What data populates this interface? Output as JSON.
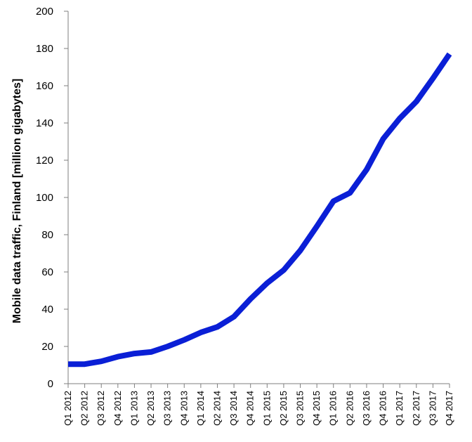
{
  "chart_data": {
    "type": "line",
    "title": "",
    "xlabel": "",
    "ylabel": "Mobile data traffic, Finland [million gigabytes]",
    "ylim": [
      0,
      200
    ],
    "yticks": [
      0,
      20,
      40,
      60,
      80,
      100,
      120,
      140,
      160,
      180,
      200
    ],
    "grid": false,
    "legend": "none",
    "line_color": "#0a1fd6",
    "categories": [
      "Q1 2012",
      "Q2 2012",
      "Q3 2012",
      "Q4 2012",
      "Q1 2013",
      "Q2 2013",
      "Q3 2013",
      "Q4 2013",
      "Q1 2014",
      "Q2 2014",
      "Q3 2014",
      "Q4 2014",
      "Q1 2015",
      "Q2 2015",
      "Q3 2015",
      "Q4 2015",
      "Q1 2016",
      "Q2 2016",
      "Q3 2016",
      "Q4 2016",
      "Q1 2017",
      "Q2 2017",
      "Q3 2017",
      "Q4 2017"
    ],
    "series": [
      {
        "values": [
          10.5,
          10.5,
          12,
          14.5,
          16.2,
          17,
          20,
          23.5,
          27.5,
          30.5,
          36,
          45.5,
          54,
          61,
          71.5,
          84.5,
          98,
          102.5,
          115,
          131.5,
          142.5,
          151.5,
          164,
          177
        ]
      }
    ]
  }
}
